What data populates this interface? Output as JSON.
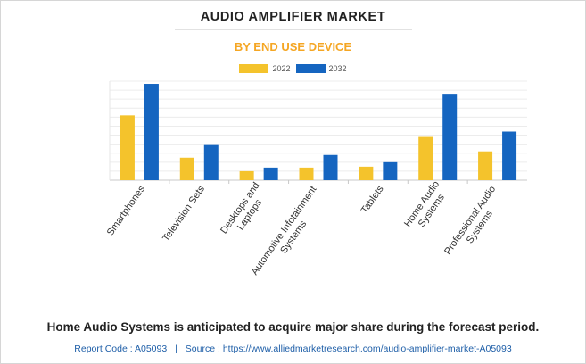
{
  "header": {
    "title": "AUDIO AMPLIFIER MARKET",
    "subtitle": "BY END USE DEVICE"
  },
  "colors": {
    "series_2022": "#f4c32c",
    "series_2032": "#1565c0",
    "subtitle": "#f5a623",
    "link": "#1f5fa8"
  },
  "chart_data": {
    "type": "bar",
    "title": "AUDIO AMPLIFIER MARKET",
    "subtitle": "BY END USE DEVICE",
    "xlabel": "",
    "ylabel": "",
    "ylim": [
      0,
      11
    ],
    "grid": true,
    "legend_position": "top-center",
    "categories": [
      "Smartphones",
      "Television Sets",
      "Desktops and Laptops",
      "Automotive Infotainment Systems",
      "Tablets",
      "Home Audio Systems",
      "Professional Audio Systems"
    ],
    "tick_labels": [
      [
        "Smartphones"
      ],
      [
        "Television Sets"
      ],
      [
        "Desktops and",
        "Laptops"
      ],
      [
        "Automotive Infotainment",
        "Systems"
      ],
      [
        "Tablets"
      ],
      [
        "Home Audio",
        "Systems"
      ],
      [
        "Professional Audio",
        "Systems"
      ]
    ],
    "series": [
      {
        "name": "2022",
        "values": [
          7.2,
          2.5,
          1.0,
          1.4,
          1.5,
          4.8,
          3.2
        ]
      },
      {
        "name": "2032",
        "values": [
          10.7,
          4.0,
          1.4,
          2.8,
          2.0,
          9.6,
          5.4
        ]
      }
    ]
  },
  "footer": {
    "statement": "Home Audio Systems is anticipated to acquire major share during the forecast period.",
    "report_code": "Report Code : A05093",
    "separator": "|",
    "source": "Source : https://www.alliedmarketresearch.com/audio-amplifier-market-A05093"
  }
}
